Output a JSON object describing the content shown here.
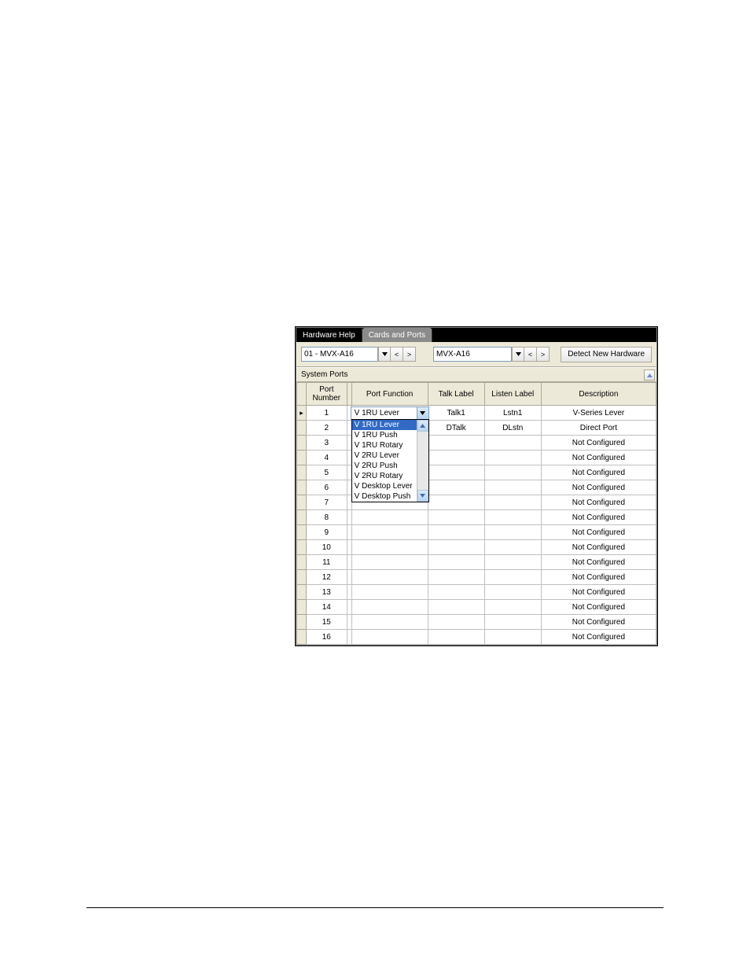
{
  "tabs": {
    "hardware_help": "Hardware Help",
    "cards_ports": "Cards and Ports"
  },
  "toolbar": {
    "slot_combo": "01 - MVX-A16",
    "type_combo": "MVX-A16",
    "detect_button": "Detect New Hardware"
  },
  "section": {
    "title": "System Ports"
  },
  "columns": {
    "port_number": "Port Number",
    "port_function": "Port Function",
    "talk_label": "Talk Label",
    "listen_label": "Listen Label",
    "description": "Description"
  },
  "dropdown": {
    "items": [
      "V 1RU Lever",
      "V 1RU Push",
      "V 1RU Rotary",
      "V 2RU Lever",
      "V 2RU Push",
      "V 2RU Rotary",
      "V Desktop Lever",
      "V Desktop Push"
    ],
    "selected_index": 0
  },
  "rows": [
    {
      "num": "1",
      "func": "V 1RU Lever",
      "talk": "Talk1",
      "listen": "Lstn1",
      "desc": "V-Series Lever",
      "current": true,
      "combo": true
    },
    {
      "num": "2",
      "func": "",
      "talk": "DTalk",
      "listen": "DLstn",
      "desc": "Direct Port"
    },
    {
      "num": "3",
      "func": "",
      "talk": "",
      "listen": "",
      "desc": "Not Configured"
    },
    {
      "num": "4",
      "func": "",
      "talk": "",
      "listen": "",
      "desc": "Not Configured"
    },
    {
      "num": "5",
      "func": "",
      "talk": "",
      "listen": "",
      "desc": "Not Configured"
    },
    {
      "num": "6",
      "func": "",
      "talk": "",
      "listen": "",
      "desc": "Not Configured"
    },
    {
      "num": "7",
      "func": "",
      "talk": "",
      "listen": "",
      "desc": "Not Configured"
    },
    {
      "num": "8",
      "func": "",
      "talk": "",
      "listen": "",
      "desc": "Not Configured"
    },
    {
      "num": "9",
      "func": "",
      "talk": "",
      "listen": "",
      "desc": "Not Configured"
    },
    {
      "num": "10",
      "func": "",
      "talk": "",
      "listen": "",
      "desc": "Not Configured"
    },
    {
      "num": "11",
      "func": "",
      "talk": "",
      "listen": "",
      "desc": "Not Configured"
    },
    {
      "num": "12",
      "func": "",
      "talk": "",
      "listen": "",
      "desc": "Not Configured"
    },
    {
      "num": "13",
      "func": "",
      "talk": "",
      "listen": "",
      "desc": "Not Configured"
    },
    {
      "num": "14",
      "func": "",
      "talk": "",
      "listen": "",
      "desc": "Not Configured"
    },
    {
      "num": "15",
      "func": "",
      "talk": "",
      "listen": "",
      "desc": "Not Configured"
    },
    {
      "num": "16",
      "func": "",
      "talk": "",
      "listen": "",
      "desc": "Not Configured"
    }
  ]
}
